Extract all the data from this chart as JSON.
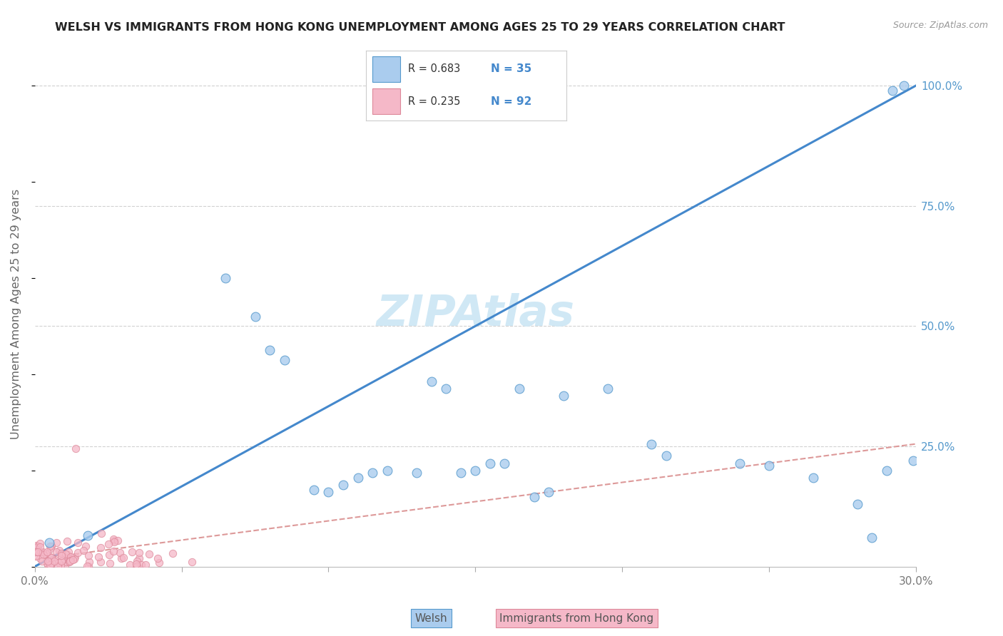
{
  "title": "WELSH VS IMMIGRANTS FROM HONG KONG UNEMPLOYMENT AMONG AGES 25 TO 29 YEARS CORRELATION CHART",
  "source": "Source: ZipAtlas.com",
  "ylabel": "Unemployment Among Ages 25 to 29 years",
  "xlim": [
    0.0,
    0.3
  ],
  "ylim": [
    0.0,
    1.05
  ],
  "xtick_positions": [
    0.0,
    0.05,
    0.1,
    0.15,
    0.2,
    0.25,
    0.3
  ],
  "xticklabels": [
    "0.0%",
    "",
    "",
    "",
    "",
    "",
    "30.0%"
  ],
  "ytick_positions": [
    0.0,
    0.25,
    0.5,
    0.75,
    1.0
  ],
  "yticklabels_right": [
    "",
    "25.0%",
    "50.0%",
    "75.0%",
    "100.0%"
  ],
  "welsh_color_fill": "#aaccee",
  "welsh_color_edge": "#5599cc",
  "hk_color_fill": "#f5b8c8",
  "hk_color_edge": "#dd8899",
  "welsh_line_color": "#4488cc",
  "hk_line_color": "#dd9999",
  "welsh_R": "R = 0.683",
  "welsh_N": "N = 35",
  "hk_R": "R = 0.235",
  "hk_N": "N = 92",
  "legend_label_welsh": "Welsh",
  "legend_label_hk": "Immigrants from Hong Kong",
  "bg_color": "#ffffff",
  "grid_color": "#cccccc",
  "title_color": "#222222",
  "axis_label_color": "#666666",
  "right_tick_color": "#5599cc",
  "watermark_text": "ZIPAtlas",
  "watermark_color": "#d0e8f5",
  "welsh_line_x": [
    0.0,
    0.3
  ],
  "welsh_line_y": [
    0.0,
    1.0
  ],
  "hk_line_x": [
    0.0,
    0.3
  ],
  "hk_line_y": [
    0.015,
    0.255
  ],
  "welsh_x": [
    0.005,
    0.018,
    0.065,
    0.075,
    0.08,
    0.085,
    0.095,
    0.1,
    0.105,
    0.11,
    0.115,
    0.12,
    0.13,
    0.135,
    0.14,
    0.145,
    0.15,
    0.155,
    0.16,
    0.165,
    0.17,
    0.175,
    0.18,
    0.195,
    0.21,
    0.215,
    0.24,
    0.25,
    0.265,
    0.28,
    0.285,
    0.29,
    0.292,
    0.296,
    0.299
  ],
  "welsh_y": [
    0.05,
    0.065,
    0.6,
    0.52,
    0.45,
    0.43,
    0.16,
    0.155,
    0.17,
    0.185,
    0.195,
    0.2,
    0.195,
    0.385,
    0.37,
    0.195,
    0.2,
    0.215,
    0.215,
    0.37,
    0.145,
    0.155,
    0.355,
    0.37,
    0.255,
    0.23,
    0.215,
    0.21,
    0.185,
    0.13,
    0.06,
    0.2,
    0.99,
    1.0,
    0.22
  ]
}
